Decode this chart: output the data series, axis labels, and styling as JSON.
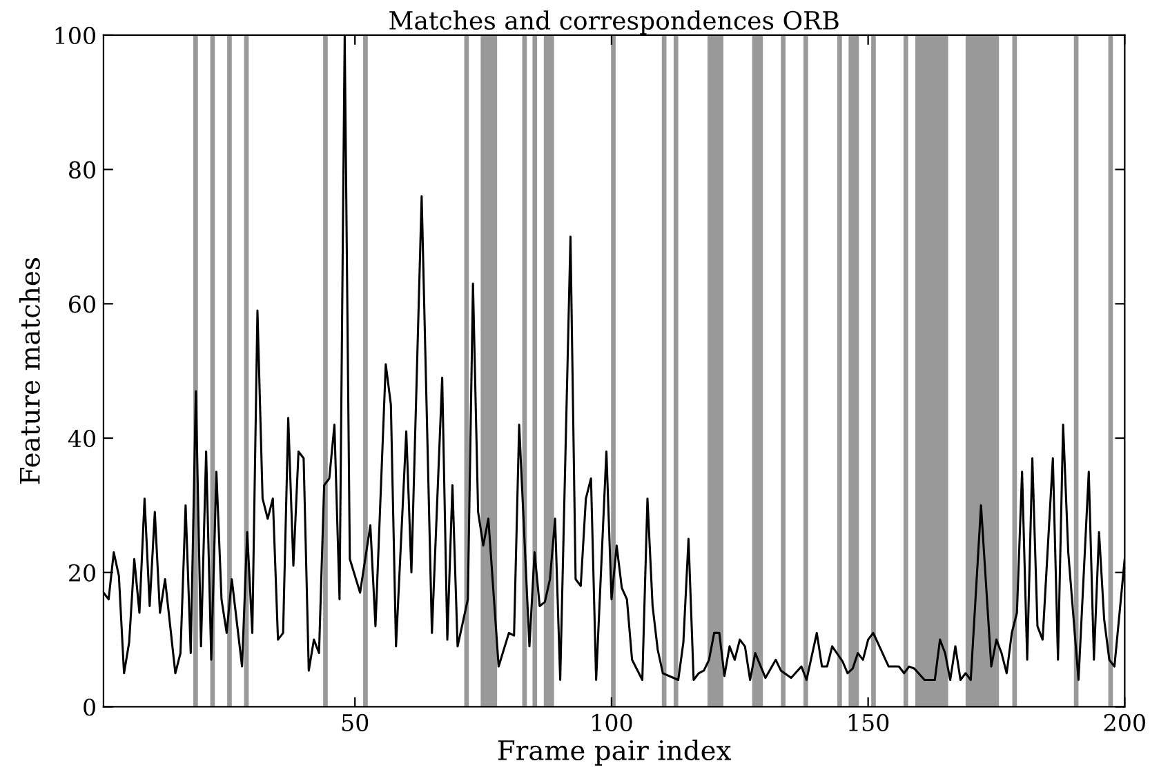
{
  "chart_data": {
    "type": "line",
    "title": "Matches and correspondences ORB",
    "xlabel": "Frame pair index",
    "ylabel": "Feature matches",
    "x": [
      1,
      2,
      3,
      4,
      5,
      6,
      7,
      8,
      9,
      10,
      11,
      12,
      13,
      15,
      16,
      17,
      18,
      19,
      20,
      21,
      22,
      23,
      24,
      25,
      26,
      28,
      29,
      30,
      31,
      32,
      33,
      34,
      35,
      36,
      37,
      38,
      39,
      40,
      41,
      42,
      43,
      44,
      45,
      46,
      47,
      48,
      49,
      51,
      53,
      54,
      56,
      57,
      58,
      60,
      61,
      63,
      65,
      67,
      68,
      69,
      70,
      72,
      73,
      74,
      75,
      76,
      78,
      80,
      81,
      82,
      84,
      85,
      86,
      87,
      88,
      89,
      90,
      92,
      93,
      94,
      95,
      96,
      97,
      99,
      100,
      101,
      102,
      103,
      104,
      106,
      107,
      108,
      109,
      110,
      113,
      114,
      115,
      116,
      117,
      118,
      119,
      120,
      121,
      122,
      123,
      124,
      125,
      126,
      127,
      128,
      130,
      132,
      133,
      135,
      137,
      138,
      140,
      141,
      142,
      143,
      145,
      146,
      147,
      148,
      149,
      150,
      151,
      154,
      156,
      157,
      158,
      159,
      161,
      163,
      164,
      165,
      166,
      167,
      168,
      169,
      170,
      172,
      174,
      175,
      176,
      177,
      178,
      179,
      180,
      181,
      182,
      183,
      184,
      186,
      187,
      188,
      189,
      191,
      193,
      194,
      195,
      196,
      197,
      198,
      200
    ],
    "series": [
      {
        "color": "#000000",
        "values": [
          17,
          16,
          23,
          19.5,
          5,
          9.6,
          22,
          14,
          31,
          15,
          29,
          14,
          19,
          5,
          8,
          30,
          8,
          47,
          9,
          38,
          7,
          35,
          16,
          11,
          19,
          6,
          26,
          11,
          59,
          31,
          28,
          31,
          10,
          11,
          43,
          21,
          38,
          37,
          5.4,
          10,
          8,
          33,
          34,
          42,
          16,
          100,
          22,
          17,
          27,
          12,
          51,
          45,
          9,
          41,
          20,
          76,
          11,
          49,
          10,
          33,
          9,
          16,
          63,
          29,
          24,
          28,
          6,
          11,
          10.6,
          42,
          9,
          23,
          15,
          15.6,
          19,
          28,
          4,
          70,
          19,
          18,
          31,
          34,
          4,
          38,
          16,
          24,
          17.7,
          16,
          7,
          4,
          31,
          15,
          8.5,
          5,
          4,
          9.6,
          25,
          4,
          5,
          5.4,
          7,
          11,
          11,
          4.6,
          9,
          7,
          10,
          9,
          4,
          8,
          4.3,
          7,
          5.4,
          4.3,
          6,
          4,
          11,
          6,
          6,
          9,
          6.8,
          5,
          5.7,
          8,
          7,
          10,
          11,
          6,
          6,
          5,
          6,
          5.7,
          4,
          4,
          10,
          8,
          4,
          9,
          4,
          5,
          4,
          30,
          6,
          10,
          8,
          5,
          11,
          14,
          35,
          7,
          37,
          12,
          10,
          37,
          7,
          42,
          23,
          4,
          35,
          7,
          26,
          13,
          7,
          6,
          22
        ]
      }
    ],
    "bands": [
      {
        "axis": "x",
        "from": 18.5,
        "to": 19.4,
        "color": "#999999"
      },
      {
        "axis": "x",
        "from": 21.8,
        "to": 22.7,
        "color": "#999999"
      },
      {
        "axis": "x",
        "from": 25.1,
        "to": 26.0,
        "color": "#999999"
      },
      {
        "axis": "x",
        "from": 28.4,
        "to": 29.3,
        "color": "#999999"
      },
      {
        "axis": "x",
        "from": 43.8,
        "to": 44.7,
        "color": "#999999"
      },
      {
        "axis": "x",
        "from": 51.6,
        "to": 52.5,
        "color": "#999999"
      },
      {
        "axis": "x",
        "from": 71.3,
        "to": 72.2,
        "color": "#999999"
      },
      {
        "axis": "x",
        "from": 74.5,
        "to": 77.7,
        "color": "#999999"
      },
      {
        "axis": "x",
        "from": 82.6,
        "to": 83.5,
        "color": "#999999"
      },
      {
        "axis": "x",
        "from": 84.6,
        "to": 85.5,
        "color": "#999999"
      },
      {
        "axis": "x",
        "from": 86.8,
        "to": 88.8,
        "color": "#999999"
      },
      {
        "axis": "x",
        "from": 99.9,
        "to": 100.8,
        "color": "#999999"
      },
      {
        "axis": "x",
        "from": 109.8,
        "to": 110.7,
        "color": "#999999"
      },
      {
        "axis": "x",
        "from": 112.1,
        "to": 113.0,
        "color": "#999999"
      },
      {
        "axis": "x",
        "from": 118.7,
        "to": 121.8,
        "color": "#999999"
      },
      {
        "axis": "x",
        "from": 127.4,
        "to": 129.5,
        "color": "#999999"
      },
      {
        "axis": "x",
        "from": 133.0,
        "to": 133.9,
        "color": "#999999"
      },
      {
        "axis": "x",
        "from": 137.4,
        "to": 138.3,
        "color": "#999999"
      },
      {
        "axis": "x",
        "from": 144.0,
        "to": 144.9,
        "color": "#999999"
      },
      {
        "axis": "x",
        "from": 146.2,
        "to": 148.2,
        "color": "#999999"
      },
      {
        "axis": "x",
        "from": 150.6,
        "to": 151.5,
        "color": "#999999"
      },
      {
        "axis": "x",
        "from": 156.9,
        "to": 157.8,
        "color": "#999999"
      },
      {
        "axis": "x",
        "from": 159.2,
        "to": 165.6,
        "color": "#999999"
      },
      {
        "axis": "x",
        "from": 169.0,
        "to": 175.5,
        "color": "#999999"
      },
      {
        "axis": "x",
        "from": 178.1,
        "to": 179.0,
        "color": "#999999"
      },
      {
        "axis": "x",
        "from": 190.1,
        "to": 191.0,
        "color": "#999999"
      },
      {
        "axis": "x",
        "from": 196.8,
        "to": 197.7,
        "color": "#999999"
      }
    ],
    "xlim": [
      1,
      200
    ],
    "ylim": [
      0,
      100
    ],
    "xticks": [
      50,
      100,
      150,
      200
    ],
    "yticks": [
      0,
      20,
      40,
      60,
      80,
      100
    ],
    "grid": false,
    "legend": false,
    "marker": "none",
    "line_style": "solid"
  }
}
